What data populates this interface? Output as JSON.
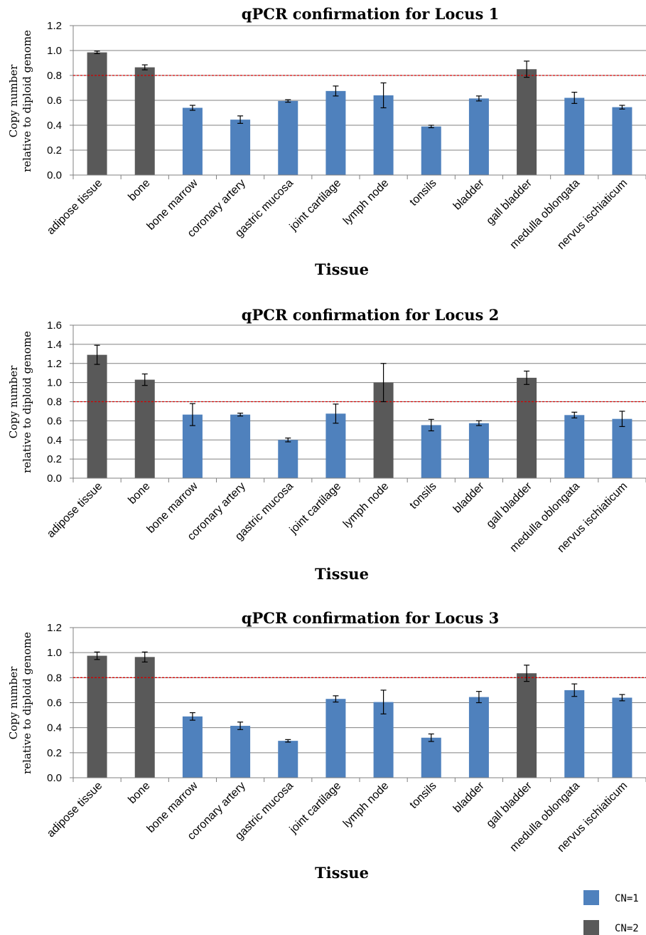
{
  "colors": {
    "cn1": "#4f81bd",
    "cn2": "#595959",
    "threshold": "#d00000",
    "grid": "#808080",
    "axis": "#808080"
  },
  "legend": [
    {
      "label": "CN=1",
      "color_key": "cn1"
    },
    {
      "label": "CN=2",
      "color_key": "cn2"
    }
  ],
  "chart_data": [
    {
      "type": "bar",
      "title": "qPCR confirmation for Locus 1",
      "xlabel": "Tissue",
      "ylabel": [
        "Copy number",
        "relative to diploid genome"
      ],
      "ylim": [
        0,
        1.2
      ],
      "yticks": [
        "0.0",
        "0.2",
        "0.4",
        "0.6",
        "0.8",
        "1.0",
        "1.2"
      ],
      "threshold": 0.8,
      "grid": true,
      "categories": [
        "adipose tissue",
        "bone",
        "bone marrow",
        "coronary artery",
        "gastric mucosa",
        "joint cartilage",
        "lymph node",
        "tonsils",
        "bladder",
        "gall bladder",
        "medulla oblongata",
        "nervus ischiaticum"
      ],
      "values": [
        0.985,
        0.865,
        0.54,
        0.445,
        0.595,
        0.675,
        0.64,
        0.39,
        0.615,
        0.85,
        0.62,
        0.545
      ],
      "errors": [
        0.01,
        0.02,
        0.02,
        0.03,
        0.01,
        0.04,
        0.1,
        0.01,
        0.02,
        0.065,
        0.045,
        0.015
      ],
      "copy_number": [
        2,
        2,
        1,
        1,
        1,
        1,
        1,
        1,
        1,
        2,
        1,
        1
      ]
    },
    {
      "type": "bar",
      "title": "qPCR confirmation for Locus 2",
      "xlabel": "Tissue",
      "ylabel": [
        "Copy number",
        "relative to diploid genome"
      ],
      "ylim": [
        0,
        1.6
      ],
      "yticks": [
        "0.0",
        "0.2",
        "0.4",
        "0.6",
        "0.8",
        "1.0",
        "1.2",
        "1.4",
        "1.6"
      ],
      "threshold": 0.8,
      "grid": true,
      "categories": [
        "adipose tissue",
        "bone",
        "bone marrow",
        "coronary artery",
        "gastric mucosa",
        "joint cartilage",
        "lymph node",
        "tonsils",
        "bladder",
        "gall bladder",
        "medulla oblongata",
        "nervus ischiaticum"
      ],
      "values": [
        1.29,
        1.03,
        0.665,
        0.665,
        0.4,
        0.675,
        1.0,
        0.555,
        0.575,
        1.05,
        0.66,
        0.62
      ],
      "errors": [
        0.1,
        0.06,
        0.115,
        0.015,
        0.02,
        0.1,
        0.2,
        0.06,
        0.025,
        0.07,
        0.03,
        0.08
      ],
      "copy_number": [
        2,
        2,
        1,
        1,
        1,
        1,
        2,
        1,
        1,
        2,
        1,
        1
      ]
    },
    {
      "type": "bar",
      "title": "qPCR confirmation for Locus 3",
      "xlabel": "Tissue",
      "ylabel": [
        "Copy number",
        "relative to diploid genome"
      ],
      "ylim": [
        0,
        1.2
      ],
      "yticks": [
        "0.0",
        "0.2",
        "0.4",
        "0.6",
        "0.8",
        "1.0",
        "1.2"
      ],
      "threshold": 0.8,
      "grid": true,
      "categories": [
        "adipose tissue",
        "bone",
        "bone marrow",
        "coronary artery",
        "gastric mucosa",
        "joint cartilage",
        "lymph node",
        "tonsils",
        "bladder",
        "gall bladder",
        "medulla oblongata",
        "nervus ischiaticum"
      ],
      "values": [
        0.975,
        0.965,
        0.49,
        0.415,
        0.295,
        0.63,
        0.605,
        0.32,
        0.645,
        0.835,
        0.7,
        0.64
      ],
      "errors": [
        0.03,
        0.04,
        0.03,
        0.03,
        0.01,
        0.025,
        0.095,
        0.03,
        0.045,
        0.065,
        0.05,
        0.025
      ],
      "copy_number": [
        2,
        2,
        1,
        1,
        1,
        1,
        1,
        1,
        1,
        2,
        1,
        1
      ]
    }
  ]
}
